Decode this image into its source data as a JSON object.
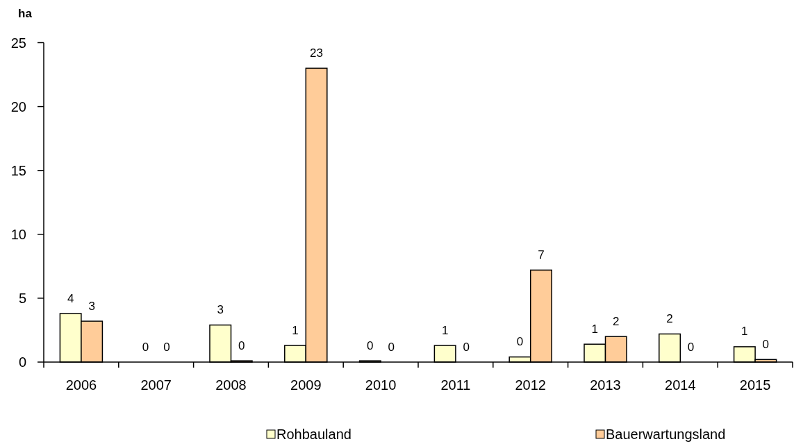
{
  "chart_data": {
    "type": "bar",
    "ylabel": "ha",
    "categories": [
      "2006",
      "2007",
      "2008",
      "2009",
      "2010",
      "2011",
      "2012",
      "2013",
      "2014",
      "2015"
    ],
    "series": [
      {
        "name": "Rohbauland",
        "color": "#ffffcc",
        "values": [
          3.8,
          0,
          2.9,
          1.3,
          0.1,
          1.3,
          0.4,
          1.4,
          2.2,
          1.2
        ],
        "value_labels": [
          "4",
          "0",
          "3",
          "1",
          "0",
          "1",
          "0",
          "1",
          "2",
          "1"
        ]
      },
      {
        "name": "Bauerwartungsland",
        "color": "#ffcc99",
        "values": [
          3.2,
          0,
          0.1,
          23,
          0,
          0,
          7.2,
          2,
          0,
          0.2
        ],
        "value_labels": [
          "3",
          "0",
          "0",
          "23",
          "0",
          "0",
          "7",
          "2",
          "0",
          "0"
        ]
      }
    ],
    "ylim": [
      0,
      25
    ],
    "yticks": [
      0,
      5,
      10,
      15,
      20,
      25
    ],
    "legend": "bottom"
  }
}
